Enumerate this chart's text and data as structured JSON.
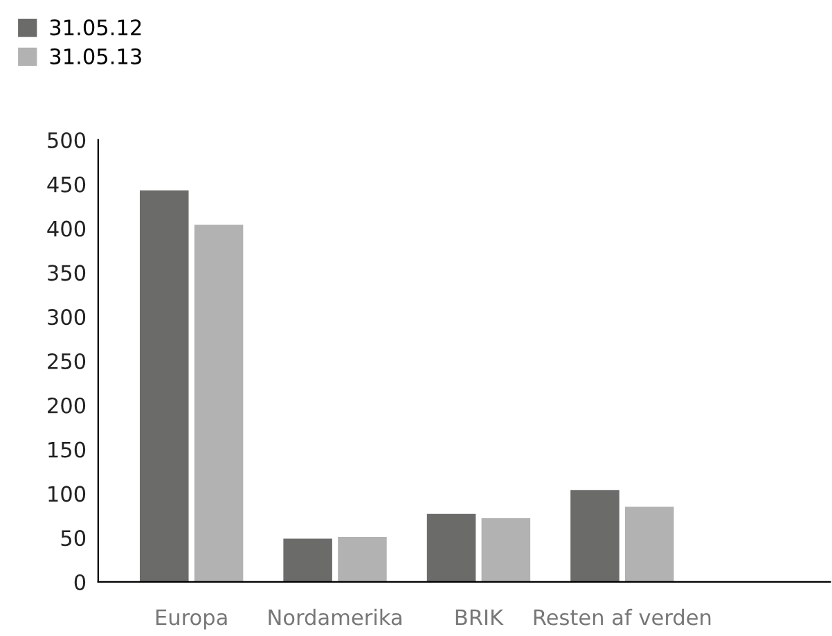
{
  "chart_data": {
    "type": "bar",
    "categories": [
      "Europa",
      "Nordamerika",
      "BRIK",
      "Resten af verden"
    ],
    "series": [
      {
        "name": "31.05.12",
        "color": "#6b6b69",
        "values": [
          443,
          49,
          77,
          104
        ]
      },
      {
        "name": "31.05.13",
        "color": "#b2b2b2",
        "values": [
          404,
          51,
          72,
          85
        ]
      }
    ],
    "ylim": [
      0,
      500
    ],
    "yticks": [
      0,
      50,
      100,
      150,
      200,
      250,
      300,
      350,
      400,
      450,
      500
    ],
    "grid": false,
    "legend": "top left"
  }
}
